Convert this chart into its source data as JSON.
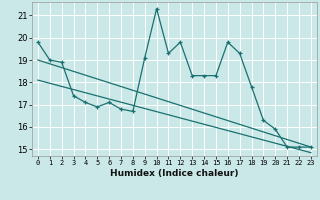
{
  "xlabel": "Humidex (Indice chaleur)",
  "bg_color": "#cbe8e8",
  "grid_color": "#ffffff",
  "line_color": "#1a7070",
  "xlim": [
    -0.5,
    23.5
  ],
  "ylim": [
    14.7,
    21.6
  ],
  "yticks": [
    15,
    16,
    17,
    18,
    19,
    20,
    21
  ],
  "xticks": [
    0,
    1,
    2,
    3,
    4,
    5,
    6,
    7,
    8,
    9,
    10,
    11,
    12,
    13,
    14,
    15,
    16,
    17,
    18,
    19,
    20,
    21,
    22,
    23
  ],
  "main_x": [
    0,
    1,
    2,
    3,
    4,
    5,
    6,
    7,
    8,
    9,
    10,
    11,
    12,
    13,
    14,
    15,
    16,
    17,
    18,
    19,
    20,
    21,
    22,
    23
  ],
  "main_y": [
    19.8,
    19.0,
    18.9,
    17.4,
    17.1,
    16.9,
    17.1,
    16.8,
    16.7,
    19.1,
    21.3,
    19.3,
    19.8,
    18.3,
    18.3,
    18.3,
    19.8,
    19.3,
    17.8,
    16.3,
    15.9,
    15.1,
    15.1,
    15.1
  ],
  "line2_x": [
    0,
    23
  ],
  "line2_y": [
    19.0,
    15.1
  ],
  "line3_x": [
    0,
    23
  ],
  "line3_y": [
    18.1,
    14.85
  ]
}
